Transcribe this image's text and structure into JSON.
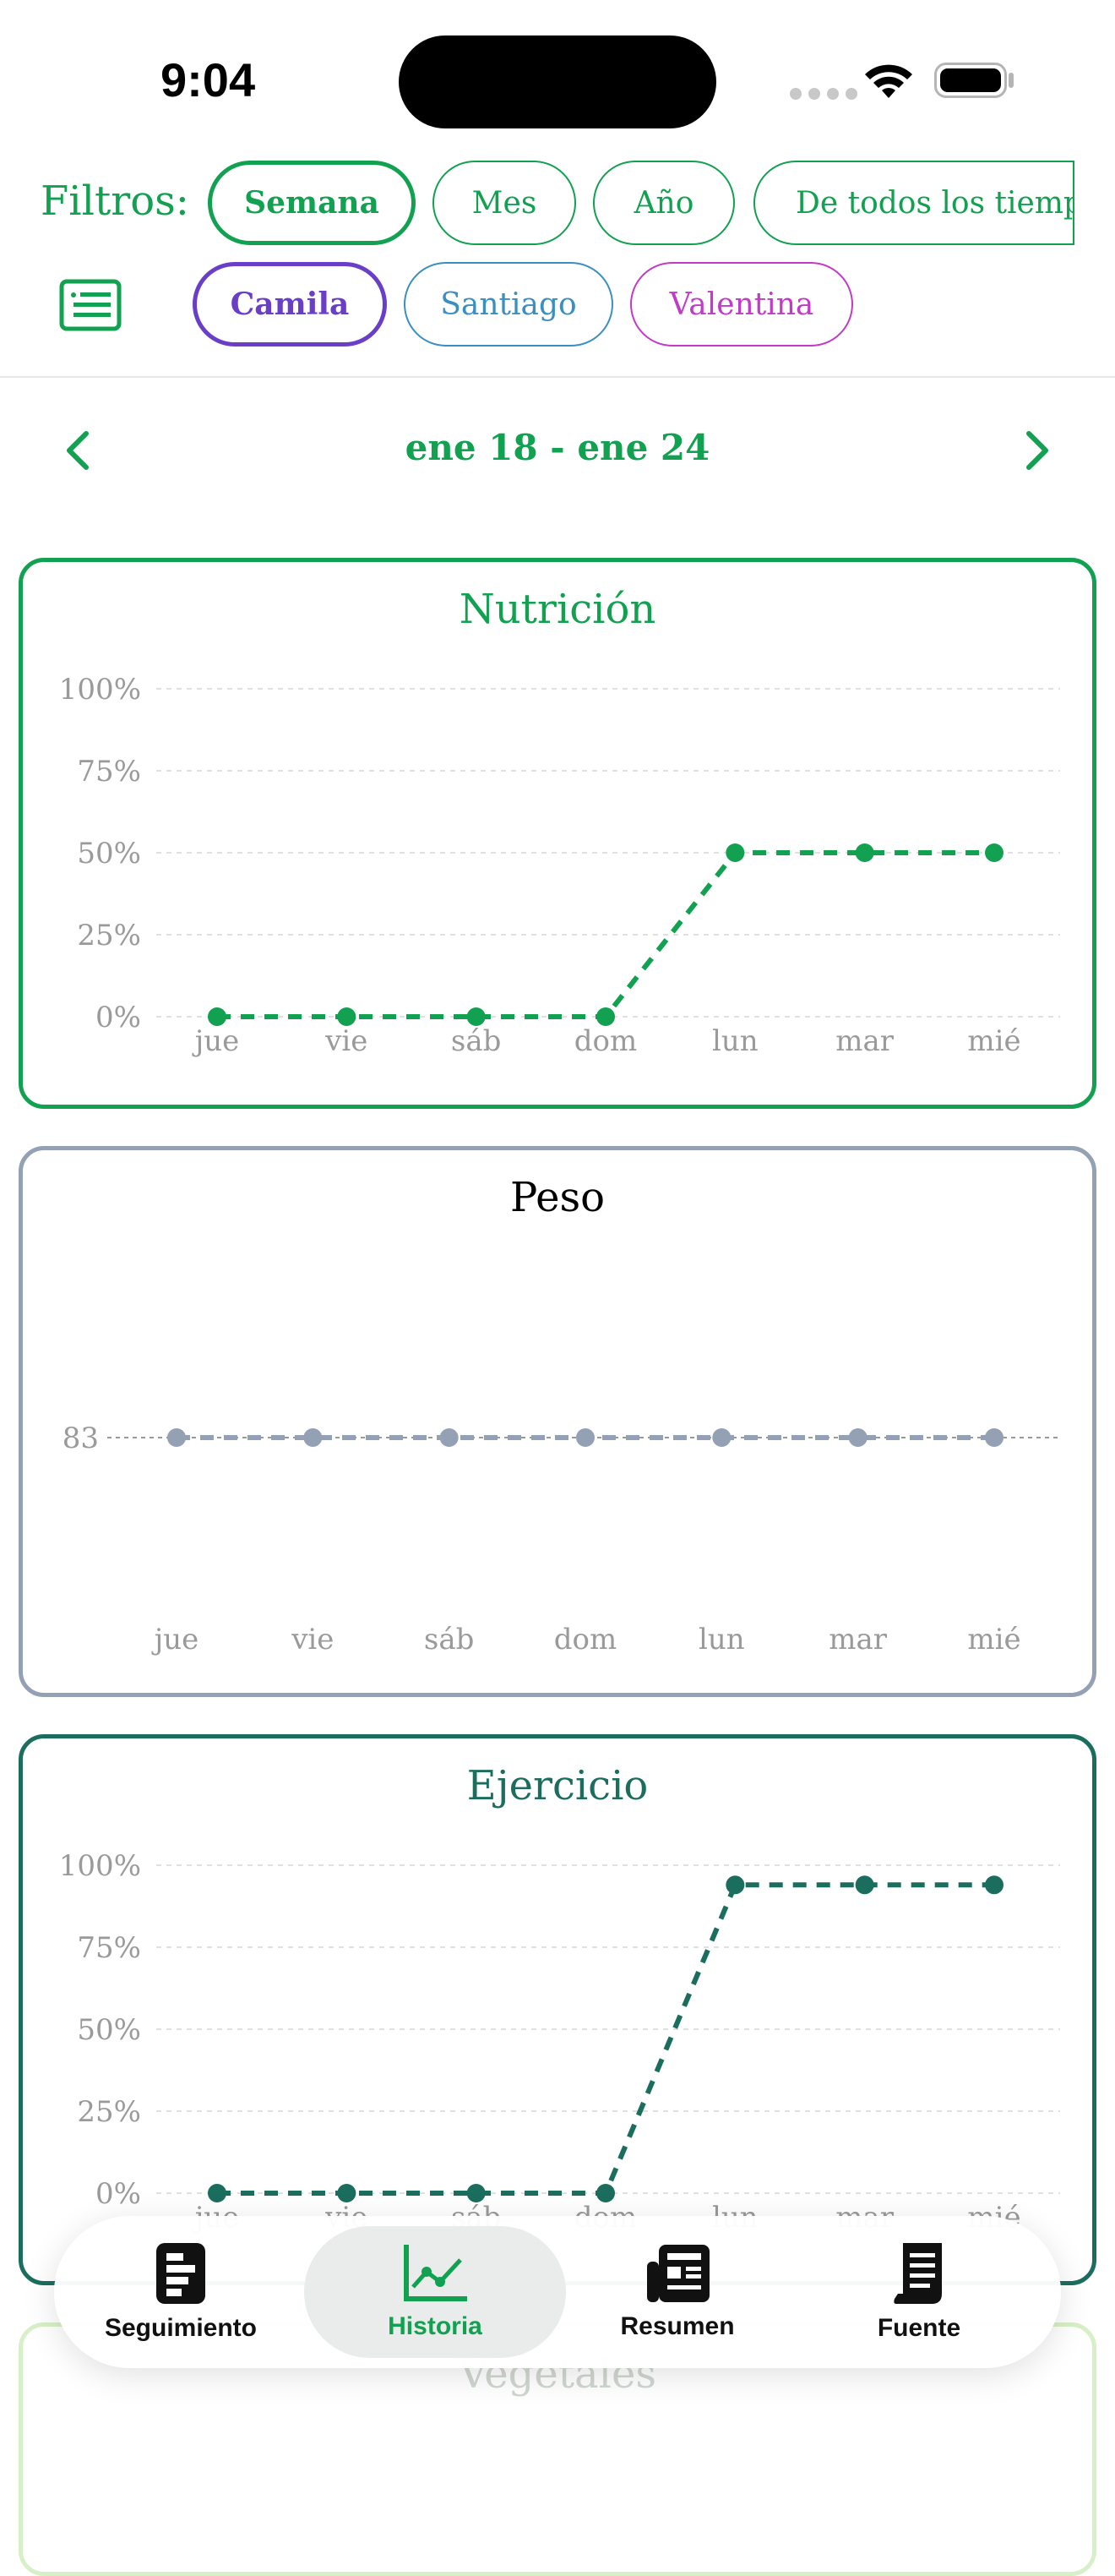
{
  "status_bar": {
    "time": "9:04"
  },
  "filters": {
    "label": "Filtros:",
    "periods": [
      "Semana",
      "Mes",
      "Año",
      "De todos los tiempo"
    ],
    "selected_period": "Semana",
    "persons": [
      {
        "name": "Camila",
        "color": "#6a3fc8",
        "selected": true
      },
      {
        "name": "Santiago",
        "color": "#3a8fc2",
        "selected": false
      },
      {
        "name": "Valentina",
        "color": "#c23ac8",
        "selected": false
      }
    ]
  },
  "date_nav": {
    "range": "ene 18 - ene 24"
  },
  "charts": [
    {
      "title": "Nutrición",
      "color": "#12a150",
      "type": "line",
      "categories": [
        "jue",
        "vie",
        "sáb",
        "dom",
        "lun",
        "mar",
        "mié"
      ],
      "y_ticks": [
        "100%",
        "75%",
        "50%",
        "25%",
        "0%"
      ],
      "ylim": [
        0,
        100
      ],
      "values": [
        0,
        0,
        0,
        0,
        50,
        50,
        50
      ]
    },
    {
      "title": "Peso",
      "color": "#94a0b4",
      "type": "line",
      "categories": [
        "jue",
        "vie",
        "sáb",
        "dom",
        "lun",
        "mar",
        "mié"
      ],
      "y_ticks": [
        "83"
      ],
      "values": [
        83,
        83,
        83,
        83,
        83,
        83,
        83
      ]
    },
    {
      "title": "Ejercicio",
      "color": "#1b6e5e",
      "type": "line",
      "categories": [
        "jue",
        "vie",
        "sáb",
        "dom",
        "lun",
        "mar",
        "mié"
      ],
      "y_ticks": [
        "100%",
        "75%",
        "50%",
        "25%",
        "0%"
      ],
      "ylim": [
        0,
        100
      ],
      "values": [
        0,
        0,
        0,
        0,
        94,
        94,
        94
      ]
    }
  ],
  "partial_card": {
    "title": "Vegetales"
  },
  "tabs": [
    {
      "label": "Seguimiento",
      "icon": "tracking-icon",
      "active": false
    },
    {
      "label": "Historia",
      "icon": "chart-icon",
      "active": true
    },
    {
      "label": "Resumen",
      "icon": "newspaper-icon",
      "active": false
    },
    {
      "label": "Fuente",
      "icon": "document-icon",
      "active": false
    }
  ],
  "colors": {
    "accent": "#12a150",
    "inactive_tab": "#111111"
  }
}
